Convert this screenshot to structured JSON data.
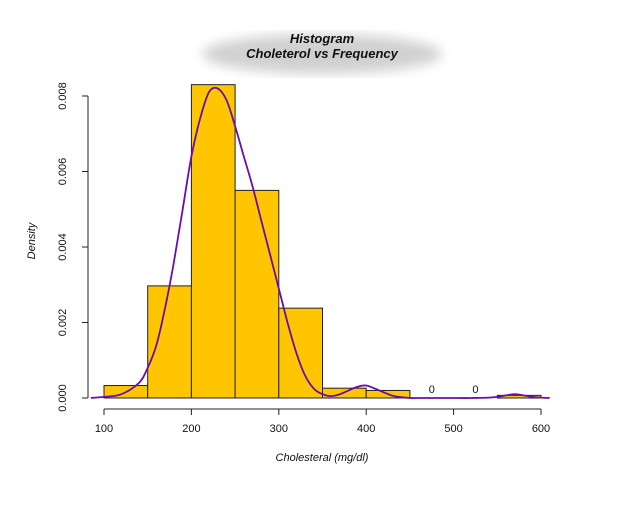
{
  "chart_data": {
    "type": "bar",
    "title": "Histogram",
    "subtitle": "Choleterol vs Frequency",
    "xlabel": "Cholesteral (mg/dl)",
    "ylabel": "Density",
    "xlim": [
      100,
      600
    ],
    "ylim": [
      0,
      0.0083
    ],
    "x_ticks": [
      100,
      200,
      300,
      400,
      500,
      600
    ],
    "y_ticks": [
      "0.000",
      "0.002",
      "0.004",
      "0.006",
      "0.008"
    ],
    "y_tick_values": [
      0,
      0.002,
      0.004,
      0.006,
      0.008
    ],
    "bins": [
      {
        "start": 100,
        "end": 150,
        "density": 0.00033
      },
      {
        "start": 150,
        "end": 200,
        "density": 0.00297
      },
      {
        "start": 200,
        "end": 250,
        "density": 0.0083
      },
      {
        "start": 250,
        "end": 300,
        "density": 0.0055
      },
      {
        "start": 300,
        "end": 350,
        "density": 0.00238
      },
      {
        "start": 350,
        "end": 400,
        "density": 0.00026
      },
      {
        "start": 400,
        "end": 450,
        "density": 0.0002
      },
      {
        "start": 450,
        "end": 500,
        "density": 0
      },
      {
        "start": 500,
        "end": 550,
        "density": 0
      },
      {
        "start": 550,
        "end": 600,
        "density": 7e-05
      }
    ],
    "bar_labels": [
      {
        "x": 475,
        "text": "0"
      },
      {
        "x": 525,
        "text": "0"
      }
    ],
    "density_curve": {
      "x": [
        85,
        100,
        120,
        140,
        150,
        160,
        170,
        180,
        190,
        200,
        210,
        220,
        230,
        240,
        250,
        260,
        270,
        280,
        290,
        300,
        310,
        320,
        330,
        340,
        350,
        360,
        370,
        380,
        390,
        400,
        410,
        420,
        430,
        440,
        450,
        460,
        480,
        500,
        520,
        540,
        550,
        560,
        570,
        580,
        590,
        600,
        610
      ],
      "y": [
        0,
        3e-05,
        0.0001,
        0.0004,
        0.0008,
        0.0014,
        0.0024,
        0.0036,
        0.005,
        0.0064,
        0.0074,
        0.0081,
        0.0082,
        0.0079,
        0.0072,
        0.0064,
        0.0056,
        0.0047,
        0.0038,
        0.0029,
        0.002,
        0.0012,
        0.0006,
        0.00025,
        0.0001,
        5e-05,
        0.0001,
        0.0002,
        0.0003,
        0.00033,
        0.00025,
        0.00015,
        6e-05,
        2e-05,
        0,
        0,
        0,
        0,
        0,
        1e-05,
        3e-05,
        7e-05,
        0.0001,
        7e-05,
        3e-05,
        1e-05,
        0
      ]
    },
    "colors": {
      "bar_fill": "#FFC600",
      "bar_stroke": "#222222",
      "curve": "#6A0DAD"
    },
    "grid": false
  }
}
